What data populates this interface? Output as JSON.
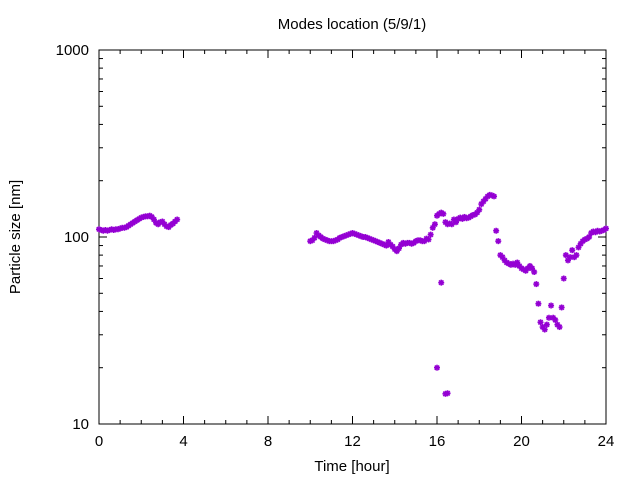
{
  "chart_data": {
    "type": "scatter",
    "title": "Modes location (5/9/1)",
    "xlabel": "Time [hour]",
    "ylabel": "Particle size [nm]",
    "xlim": [
      0,
      24
    ],
    "ylim": [
      10,
      1000
    ],
    "yscale": "log",
    "xticks": [
      0,
      4,
      8,
      12,
      16,
      20,
      24
    ],
    "yticks": [
      10,
      100,
      1000
    ],
    "grid": false,
    "marker_color": "#9400d3",
    "series": [
      {
        "points": [
          [
            0.0,
            110
          ],
          [
            0.1,
            109
          ],
          [
            0.2,
            108
          ],
          [
            0.3,
            109
          ],
          [
            0.4,
            108
          ],
          [
            0.5,
            109
          ],
          [
            0.6,
            110
          ],
          [
            0.7,
            109
          ],
          [
            0.8,
            110
          ],
          [
            0.9,
            110
          ],
          [
            1.0,
            111
          ],
          [
            1.1,
            112
          ],
          [
            1.2,
            112
          ],
          [
            1.3,
            113
          ],
          [
            1.4,
            115
          ],
          [
            1.5,
            117
          ],
          [
            1.6,
            119
          ],
          [
            1.7,
            121
          ],
          [
            1.8,
            123
          ],
          [
            1.9,
            125
          ],
          [
            2.0,
            127
          ],
          [
            2.1,
            128
          ],
          [
            2.2,
            129
          ],
          [
            2.3,
            129
          ],
          [
            2.4,
            130
          ],
          [
            2.5,
            128
          ],
          [
            2.6,
            124
          ],
          [
            2.7,
            119
          ],
          [
            2.8,
            117
          ],
          [
            2.9,
            120
          ],
          [
            3.0,
            121
          ],
          [
            3.1,
            117
          ],
          [
            3.2,
            114
          ],
          [
            3.3,
            113
          ],
          [
            3.4,
            116
          ],
          [
            3.5,
            118
          ],
          [
            3.6,
            121
          ],
          [
            3.7,
            124
          ],
          [
            10.0,
            95
          ],
          [
            10.1,
            96
          ],
          [
            10.2,
            99
          ],
          [
            10.3,
            105
          ],
          [
            10.4,
            102
          ],
          [
            10.5,
            100
          ],
          [
            10.6,
            98
          ],
          [
            10.7,
            97
          ],
          [
            10.8,
            96
          ],
          [
            10.9,
            95
          ],
          [
            11.0,
            95
          ],
          [
            11.1,
            95
          ],
          [
            11.2,
            96
          ],
          [
            11.3,
            97
          ],
          [
            11.4,
            99
          ],
          [
            11.5,
            100
          ],
          [
            11.6,
            101
          ],
          [
            11.7,
            102
          ],
          [
            11.8,
            103
          ],
          [
            11.9,
            104
          ],
          [
            12.0,
            105
          ],
          [
            12.1,
            104
          ],
          [
            12.2,
            103
          ],
          [
            12.3,
            102
          ],
          [
            12.4,
            101
          ],
          [
            12.5,
            100
          ],
          [
            12.6,
            100
          ],
          [
            12.7,
            99
          ],
          [
            12.8,
            98
          ],
          [
            12.9,
            97
          ],
          [
            13.0,
            96
          ],
          [
            13.1,
            95
          ],
          [
            13.2,
            94
          ],
          [
            13.3,
            93
          ],
          [
            13.4,
            92
          ],
          [
            13.5,
            91
          ],
          [
            13.6,
            90
          ],
          [
            13.7,
            94
          ],
          [
            13.8,
            91
          ],
          [
            13.9,
            89
          ],
          [
            14.0,
            86
          ],
          [
            14.1,
            84
          ],
          [
            14.2,
            87
          ],
          [
            14.3,
            91
          ],
          [
            14.4,
            93
          ],
          [
            14.5,
            92
          ],
          [
            14.6,
            93
          ],
          [
            14.7,
            93
          ],
          [
            14.8,
            92
          ],
          [
            14.9,
            93
          ],
          [
            15.0,
            95
          ],
          [
            15.1,
            96
          ],
          [
            15.2,
            96
          ],
          [
            15.3,
            95
          ],
          [
            15.4,
            95
          ],
          [
            15.5,
            98
          ],
          [
            15.6,
            97
          ],
          [
            15.7,
            103
          ],
          [
            15.8,
            112
          ],
          [
            15.9,
            117
          ],
          [
            16.0,
            130
          ],
          [
            16.1,
            133
          ],
          [
            16.2,
            135
          ],
          [
            16.3,
            133
          ],
          [
            16.4,
            120
          ],
          [
            16.5,
            117
          ],
          [
            16.6,
            118
          ],
          [
            16.7,
            117
          ],
          [
            16.8,
            124
          ],
          [
            16.9,
            120
          ],
          [
            17.0,
            125
          ],
          [
            17.1,
            127
          ],
          [
            17.2,
            125
          ],
          [
            17.3,
            128
          ],
          [
            17.4,
            126
          ],
          [
            17.5,
            127
          ],
          [
            17.6,
            129
          ],
          [
            17.7,
            131
          ],
          [
            17.8,
            132
          ],
          [
            17.9,
            135
          ],
          [
            18.0,
            140
          ],
          [
            18.1,
            150
          ],
          [
            18.2,
            155
          ],
          [
            18.3,
            160
          ],
          [
            18.4,
            165
          ],
          [
            18.5,
            168
          ],
          [
            18.6,
            167
          ],
          [
            18.7,
            165
          ],
          [
            18.8,
            108
          ],
          [
            18.9,
            95
          ],
          [
            19.0,
            80
          ],
          [
            19.1,
            78
          ],
          [
            19.2,
            75
          ],
          [
            19.3,
            73
          ],
          [
            19.4,
            72
          ],
          [
            19.5,
            71
          ],
          [
            19.6,
            72
          ],
          [
            19.7,
            71
          ],
          [
            19.8,
            73
          ],
          [
            19.9,
            70
          ],
          [
            20.0,
            68
          ],
          [
            20.1,
            67
          ],
          [
            20.2,
            66
          ],
          [
            20.3,
            68
          ],
          [
            20.4,
            70
          ],
          [
            20.5,
            68
          ],
          [
            20.6,
            65
          ],
          [
            20.7,
            56
          ],
          [
            20.8,
            44
          ],
          [
            20.9,
            35
          ],
          [
            21.0,
            33
          ],
          [
            21.1,
            32
          ],
          [
            21.2,
            34
          ],
          [
            21.3,
            37
          ],
          [
            21.4,
            43
          ],
          [
            21.5,
            37
          ],
          [
            21.6,
            36
          ],
          [
            21.7,
            34
          ],
          [
            21.8,
            33
          ],
          [
            21.9,
            42
          ],
          [
            22.0,
            60
          ],
          [
            22.1,
            80
          ],
          [
            22.2,
            75
          ],
          [
            22.3,
            78
          ],
          [
            22.4,
            85
          ],
          [
            22.5,
            78
          ],
          [
            22.6,
            80
          ],
          [
            22.7,
            88
          ],
          [
            22.8,
            92
          ],
          [
            22.9,
            95
          ],
          [
            23.0,
            97
          ],
          [
            23.1,
            98
          ],
          [
            23.2,
            100
          ],
          [
            23.3,
            105
          ],
          [
            23.4,
            107
          ],
          [
            23.5,
            106
          ],
          [
            23.6,
            108
          ],
          [
            23.7,
            107
          ],
          [
            23.8,
            108
          ],
          [
            23.9,
            109
          ],
          [
            24.0,
            111
          ],
          [
            16.0,
            20
          ],
          [
            16.2,
            57
          ],
          [
            16.4,
            14.5
          ],
          [
            16.5,
            14.6
          ]
        ]
      }
    ]
  }
}
